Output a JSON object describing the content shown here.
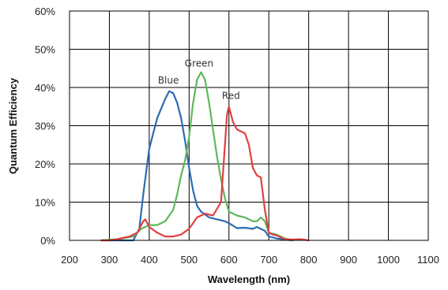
{
  "chart_data": {
    "type": "line",
    "xlabel": "Wavelength (nm)",
    "ylabel": "Quantum Efficiency",
    "xlim": [
      200,
      1100
    ],
    "ylim": [
      0,
      60
    ],
    "x_ticks": [
      200,
      300,
      400,
      500,
      600,
      700,
      800,
      900,
      1000,
      1100
    ],
    "y_ticks": [
      0,
      10,
      20,
      30,
      40,
      50,
      60
    ],
    "x_tick_labels": [
      "200",
      "300",
      "400",
      "500",
      "600",
      "700",
      "800",
      "900",
      "1000",
      "1100"
    ],
    "y_tick_labels": [
      "0%",
      "10%",
      "20%",
      "30%",
      "40%",
      "50%",
      "60%"
    ],
    "grid": true,
    "series": [
      {
        "name": "Blue",
        "color": "#2b6cb3",
        "x": [
          280,
          330,
          360,
          375,
          385,
          400,
          420,
          440,
          450,
          460,
          470,
          480,
          490,
          500,
          510,
          520,
          530,
          550,
          570,
          590,
          600,
          620,
          640,
          660,
          670,
          680,
          690,
          700,
          720,
          740,
          760
        ],
        "y": [
          0,
          0,
          0,
          3,
          12,
          24,
          32,
          37,
          39,
          38.5,
          36,
          32,
          26,
          19,
          13,
          9,
          7.5,
          6,
          5.5,
          5,
          4.5,
          3.2,
          3.3,
          3,
          3.5,
          3,
          2.5,
          1,
          0.5,
          0.2,
          0
        ]
      },
      {
        "name": "Green",
        "color": "#5cb85c",
        "x": [
          280,
          320,
          360,
          380,
          400,
          420,
          440,
          460,
          470,
          480,
          490,
          500,
          510,
          520,
          530,
          540,
          550,
          560,
          570,
          580,
          590,
          600,
          620,
          640,
          660,
          670,
          680,
          690,
          700,
          720,
          740,
          760
        ],
        "y": [
          0,
          0.3,
          1,
          3,
          4,
          4,
          5,
          8,
          12,
          17,
          21,
          27,
          36,
          42,
          44,
          42,
          36,
          29,
          22,
          16,
          11,
          7.5,
          6.5,
          6,
          5,
          5,
          6,
          5,
          2,
          1.5,
          0.5,
          0
        ]
      },
      {
        "name": "Red",
        "color": "#e04040",
        "x": [
          280,
          300,
          320,
          350,
          370,
          385,
          390,
          400,
          420,
          440,
          460,
          480,
          500,
          520,
          540,
          560,
          580,
          590,
          595,
          600,
          610,
          620,
          640,
          650,
          660,
          670,
          680,
          690,
          700,
          710,
          720,
          740,
          760,
          780,
          800
        ],
        "y": [
          0,
          0,
          0.3,
          1,
          2,
          5,
          5.5,
          3.5,
          2,
          1,
          1,
          1.5,
          3,
          6,
          7,
          6.5,
          10,
          25,
          33,
          35,
          31,
          29,
          28,
          25,
          19,
          17,
          16.5,
          8,
          2,
          1.5,
          1.3,
          0.3,
          0.2,
          0.3,
          0
        ]
      }
    ],
    "annotations": [
      {
        "text": "Blue",
        "x": 448,
        "y": 41
      },
      {
        "text": "Green",
        "x": 525,
        "y": 45.5
      },
      {
        "text": "Red",
        "x": 605,
        "y": 37
      }
    ]
  }
}
